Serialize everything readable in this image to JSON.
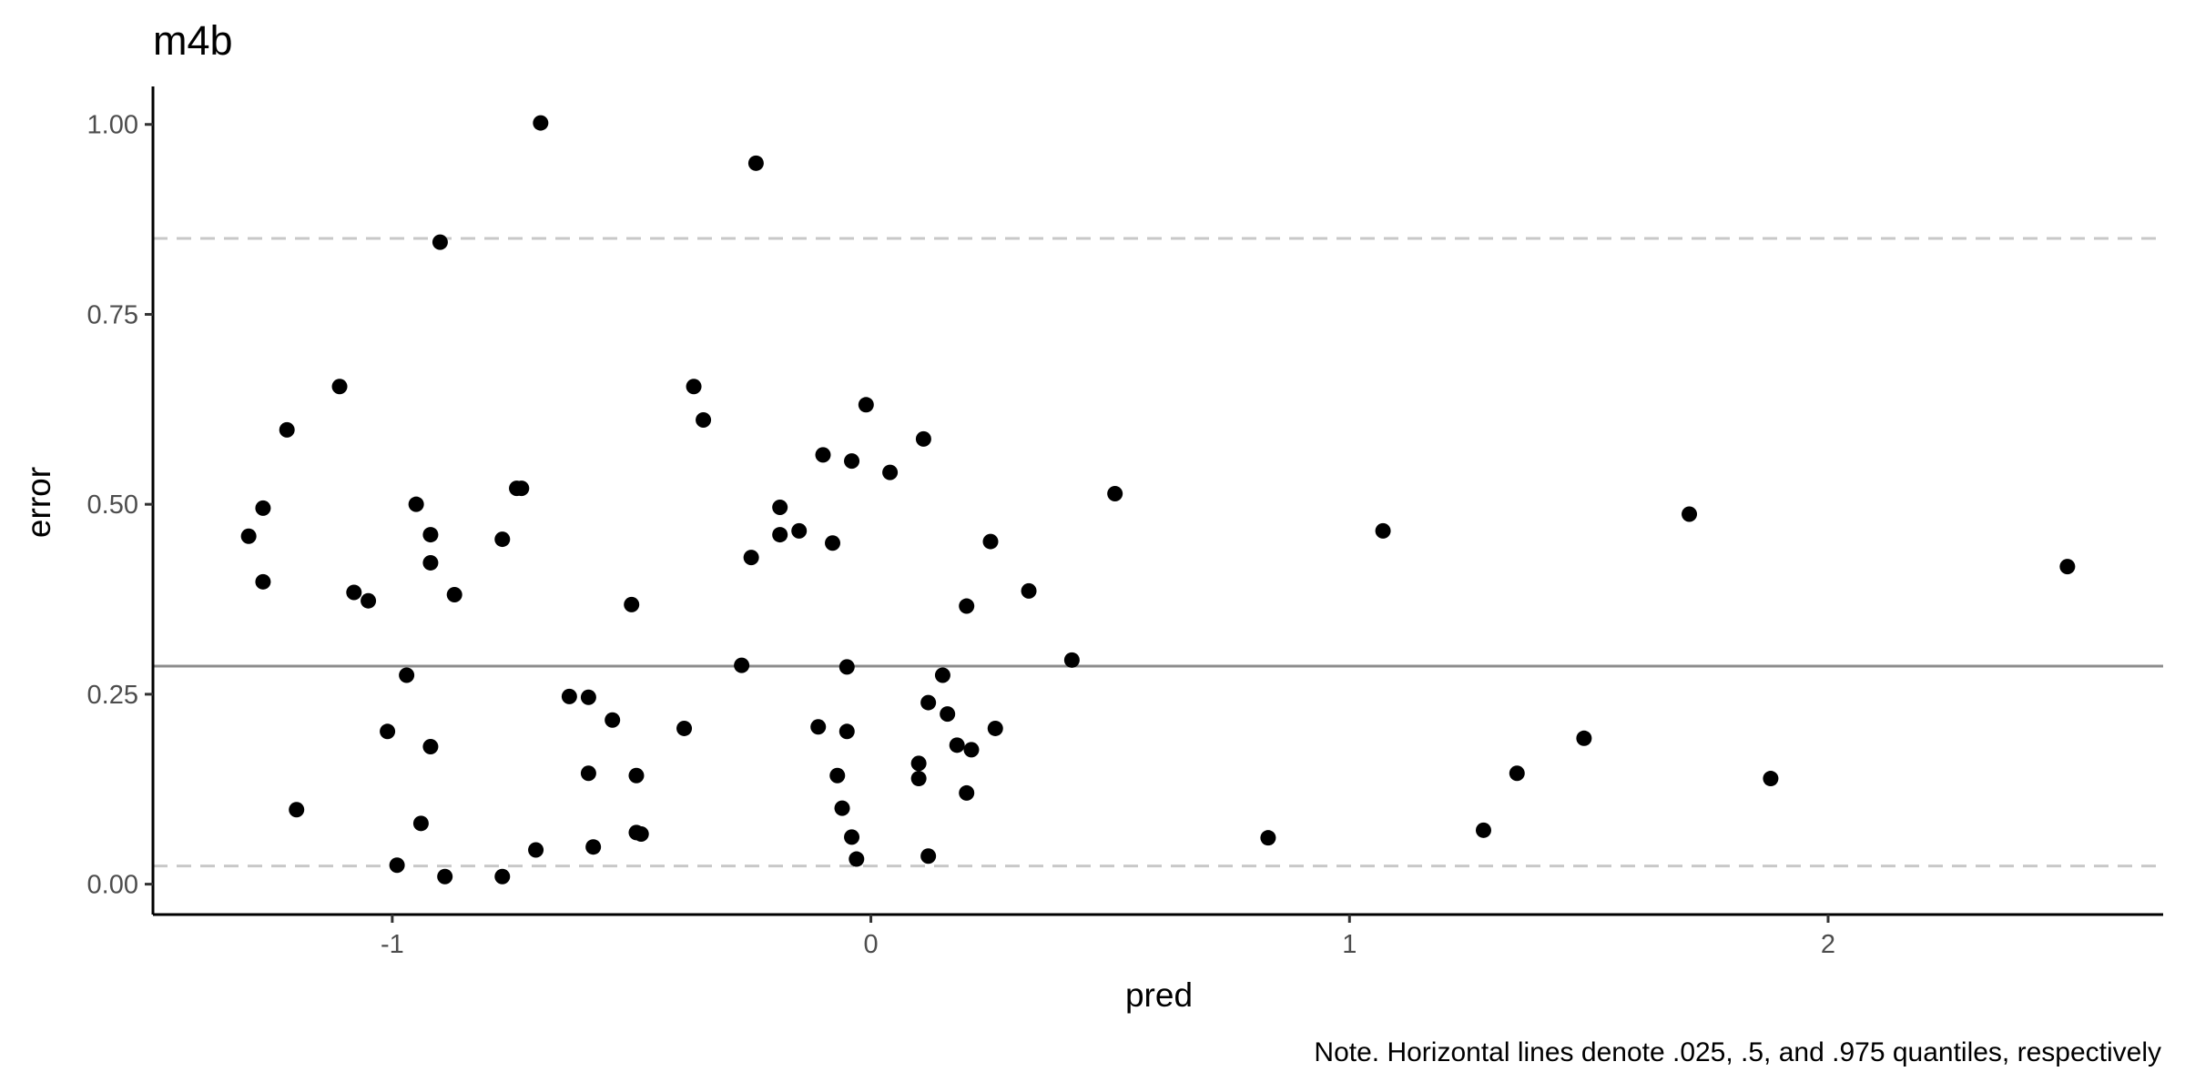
{
  "chart_data": {
    "type": "scatter",
    "title": "m4b",
    "xlabel": "pred",
    "ylabel": "error",
    "caption": "Note. Horizontal lines denote .025, .5, and .975 quantiles, respectively",
    "xlim": [
      -1.5,
      2.7
    ],
    "ylim": [
      -0.04,
      1.05
    ],
    "x_ticks": [
      -1,
      0,
      1,
      2
    ],
    "x_tick_labels": [
      "-1",
      "0",
      "1",
      "2"
    ],
    "y_ticks": [
      0,
      0.25,
      0.5,
      0.75,
      1.0
    ],
    "y_tick_labels": [
      "0.00",
      "0.25",
      "0.50",
      "0.75",
      "1.00"
    ],
    "grid": false,
    "quantile_lines": [
      {
        "quantile": 0.025,
        "y": 0.024,
        "style": "dashed",
        "color": "#c8c8c8"
      },
      {
        "quantile": 0.5,
        "y": 0.287,
        "style": "solid",
        "color": "#8c8c8c"
      },
      {
        "quantile": 0.975,
        "y": 0.85,
        "style": "dashed",
        "color": "#c8c8c8"
      }
    ],
    "point_color": "#000000",
    "points": [
      {
        "x": -1.3,
        "y": 0.458
      },
      {
        "x": -1.27,
        "y": 0.495
      },
      {
        "x": -1.27,
        "y": 0.398
      },
      {
        "x": -1.22,
        "y": 0.598
      },
      {
        "x": -1.2,
        "y": 0.098
      },
      {
        "x": -1.11,
        "y": 0.655
      },
      {
        "x": -1.08,
        "y": 0.384
      },
      {
        "x": -1.05,
        "y": 0.373
      },
      {
        "x": -1.01,
        "y": 0.201
      },
      {
        "x": -0.99,
        "y": 0.025
      },
      {
        "x": -0.97,
        "y": 0.275
      },
      {
        "x": -0.95,
        "y": 0.5
      },
      {
        "x": -0.94,
        "y": 0.08
      },
      {
        "x": -0.92,
        "y": 0.46
      },
      {
        "x": -0.92,
        "y": 0.423
      },
      {
        "x": -0.92,
        "y": 0.181
      },
      {
        "x": -0.9,
        "y": 0.845
      },
      {
        "x": -0.89,
        "y": 0.01
      },
      {
        "x": -0.87,
        "y": 0.381
      },
      {
        "x": -0.77,
        "y": 0.454
      },
      {
        "x": -0.77,
        "y": 0.01
      },
      {
        "x": -0.74,
        "y": 0.521
      },
      {
        "x": -0.73,
        "y": 0.521
      },
      {
        "x": -0.7,
        "y": 0.045
      },
      {
        "x": -0.69,
        "y": 1.002
      },
      {
        "x": -0.63,
        "y": 0.247
      },
      {
        "x": -0.59,
        "y": 0.246
      },
      {
        "x": -0.59,
        "y": 0.146
      },
      {
        "x": -0.58,
        "y": 0.049
      },
      {
        "x": -0.54,
        "y": 0.216
      },
      {
        "x": -0.5,
        "y": 0.368
      },
      {
        "x": -0.49,
        "y": 0.143
      },
      {
        "x": -0.49,
        "y": 0.068
      },
      {
        "x": -0.48,
        "y": 0.066
      },
      {
        "x": -0.39,
        "y": 0.205
      },
      {
        "x": -0.37,
        "y": 0.655
      },
      {
        "x": -0.35,
        "y": 0.611
      },
      {
        "x": -0.27,
        "y": 0.288
      },
      {
        "x": -0.25,
        "y": 0.43
      },
      {
        "x": -0.24,
        "y": 0.949
      },
      {
        "x": -0.19,
        "y": 0.496
      },
      {
        "x": -0.19,
        "y": 0.46
      },
      {
        "x": -0.15,
        "y": 0.465
      },
      {
        "x": -0.11,
        "y": 0.207
      },
      {
        "x": -0.1,
        "y": 0.565
      },
      {
        "x": -0.08,
        "y": 0.449
      },
      {
        "x": -0.07,
        "y": 0.143
      },
      {
        "x": -0.06,
        "y": 0.1
      },
      {
        "x": -0.05,
        "y": 0.201
      },
      {
        "x": -0.05,
        "y": 0.286
      },
      {
        "x": -0.04,
        "y": 0.062
      },
      {
        "x": -0.04,
        "y": 0.557
      },
      {
        "x": -0.03,
        "y": 0.033
      },
      {
        "x": -0.01,
        "y": 0.631
      },
      {
        "x": 0.04,
        "y": 0.542
      },
      {
        "x": 0.1,
        "y": 0.159
      },
      {
        "x": 0.1,
        "y": 0.139
      },
      {
        "x": 0.11,
        "y": 0.586
      },
      {
        "x": 0.12,
        "y": 0.239
      },
      {
        "x": 0.12,
        "y": 0.037
      },
      {
        "x": 0.15,
        "y": 0.275
      },
      {
        "x": 0.16,
        "y": 0.224
      },
      {
        "x": 0.18,
        "y": 0.183
      },
      {
        "x": 0.2,
        "y": 0.366
      },
      {
        "x": 0.2,
        "y": 0.12
      },
      {
        "x": 0.21,
        "y": 0.177
      },
      {
        "x": 0.25,
        "y": 0.451
      },
      {
        "x": 0.26,
        "y": 0.205
      },
      {
        "x": 0.33,
        "y": 0.386
      },
      {
        "x": 0.42,
        "y": 0.295
      },
      {
        "x": 0.51,
        "y": 0.514
      },
      {
        "x": 0.83,
        "y": 0.061
      },
      {
        "x": 1.07,
        "y": 0.465
      },
      {
        "x": 1.28,
        "y": 0.071
      },
      {
        "x": 1.35,
        "y": 0.146
      },
      {
        "x": 1.49,
        "y": 0.192
      },
      {
        "x": 1.71,
        "y": 0.487
      },
      {
        "x": 1.88,
        "y": 0.139
      },
      {
        "x": 2.5,
        "y": 0.418
      }
    ]
  }
}
